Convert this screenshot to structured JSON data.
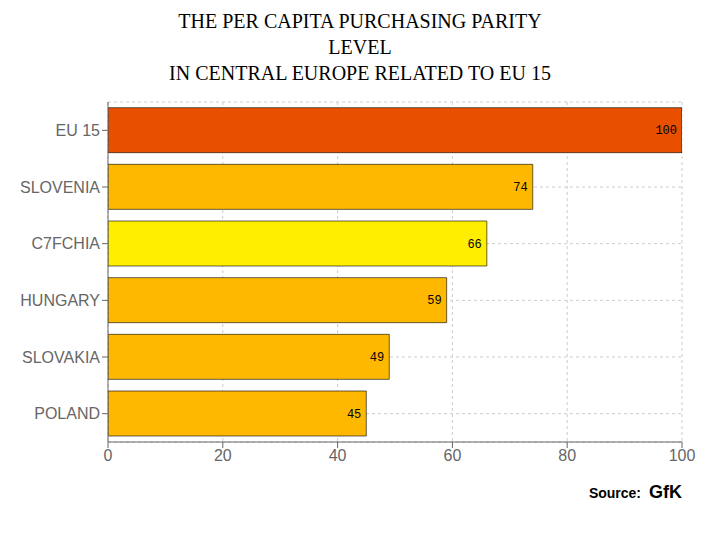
{
  "chart_data": {
    "type": "bar",
    "title": "THE PER CAPITA PURCHASING PARITY\nLEVEL\nIN CENTRAL EUROPE RELATED TO EU 15",
    "categories": [
      "EU 15",
      "SLOVENIA",
      "C7FCHIA",
      "HUNGARY",
      "SLOVAKIA",
      "POLAND"
    ],
    "values": [
      100,
      74,
      66,
      59,
      49,
      45
    ],
    "colors": [
      "#E85000",
      "#FFB800",
      "#FFEE00",
      "#FFB800",
      "#FFB800",
      "#FFB800"
    ],
    "xlim": [
      0,
      100
    ],
    "xticks": [
      0,
      20,
      40,
      60,
      80,
      100
    ],
    "orientation": "horizontal",
    "grid": true,
    "data_labels": true,
    "annotations": [
      "Source:",
      "GfK"
    ]
  }
}
